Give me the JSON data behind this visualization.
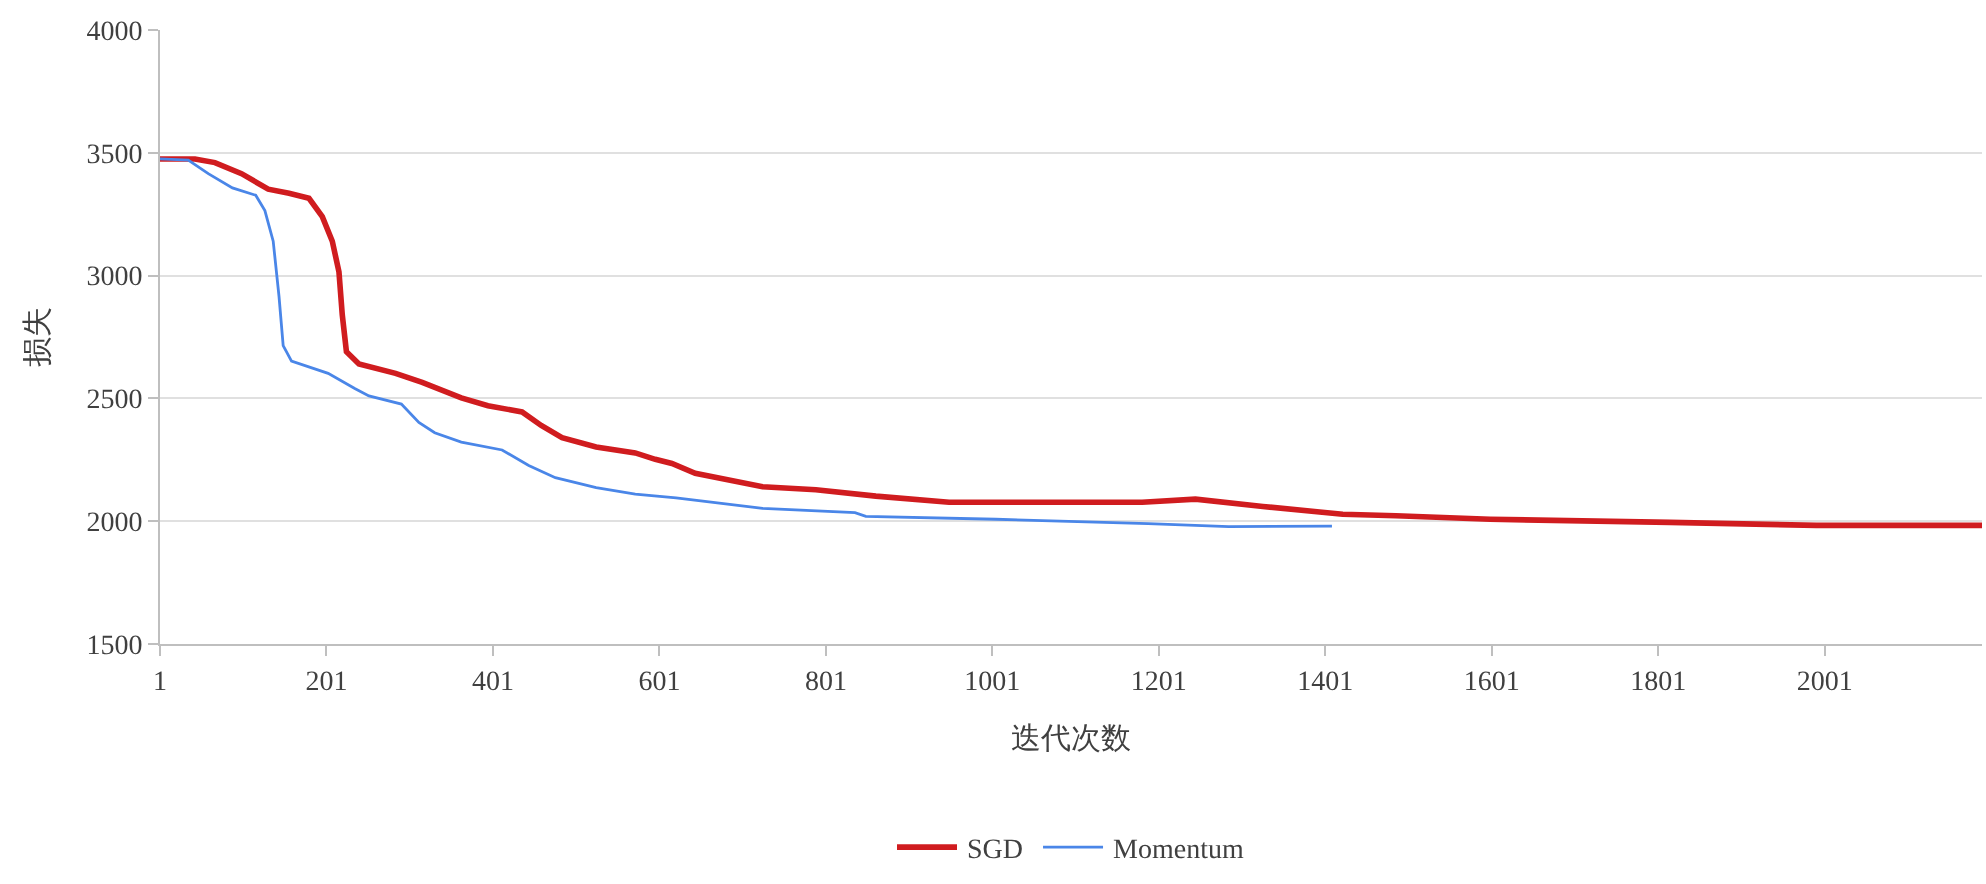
{
  "chart_data": {
    "type": "line",
    "xlabel": "迭代次数",
    "ylabel": "损失",
    "xlim": [
      1,
      2190
    ],
    "xticks": [
      1,
      201,
      401,
      601,
      801,
      1001,
      1201,
      1401,
      1601,
      1801,
      2001
    ],
    "ylim": [
      1500,
      4000
    ],
    "yticks": [
      1500,
      2000,
      2500,
      3000,
      3500,
      4000
    ],
    "grid": "y",
    "legend": "bottom",
    "marker": "none",
    "line_style": "solid",
    "series": [
      {
        "name": "SGD",
        "color": "#d01c1f",
        "x": [
          1,
          43,
          67,
          99,
          131,
          156,
          180,
          196,
          208,
          216,
          220,
          225,
          240,
          284,
          316,
          363,
          395,
          436,
          459,
          484,
          525,
          572,
          596,
          616,
          644,
          725,
          789,
          861,
          949,
          1181,
          1245,
          1326,
          1422,
          1486,
          1599,
          1815,
          1991,
          2190
        ],
        "values": [
          3475,
          3475,
          3460,
          3415,
          3352,
          3335,
          3315,
          3240,
          3140,
          3015,
          2840,
          2690,
          2640,
          2602,
          2565,
          2502,
          2470,
          2445,
          2390,
          2340,
          2302,
          2278,
          2252,
          2235,
          2195,
          2140,
          2128,
          2102,
          2077,
          2077,
          2090,
          2060,
          2028,
          2022,
          2008,
          1995,
          1983,
          1983
        ]
      },
      {
        "name": "Momentum",
        "color": "#4a86e8",
        "x": [
          1,
          35,
          59,
          88,
          116,
          127,
          137,
          144,
          149,
          159,
          203,
          235,
          252,
          291,
          312,
          331,
          363,
          412,
          444,
          476,
          525,
          572,
          621,
          725,
          836,
          849,
          1005,
          1188,
          1285,
          1409
        ],
        "values": [
          3475,
          3470,
          3415,
          3357,
          3327,
          3265,
          3140,
          2915,
          2715,
          2652,
          2602,
          2540,
          2510,
          2477,
          2402,
          2360,
          2322,
          2290,
          2227,
          2177,
          2137,
          2110,
          2095,
          2052,
          2035,
          2020,
          2008,
          1990,
          1978,
          1980
        ]
      }
    ]
  }
}
